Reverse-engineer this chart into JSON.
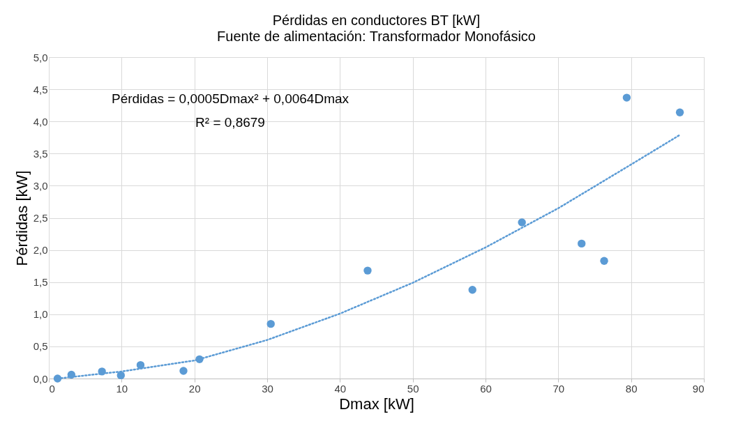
{
  "chart_data": {
    "type": "scatter",
    "title": "Pérdidas en conductores BT [kW]",
    "subtitle": "Fuente de alimentación:  Transformador Monofásico",
    "xlabel": "Dmax [kW]",
    "ylabel": "Pérdidas [kW]",
    "xlim": [
      0,
      90
    ],
    "xticks": [
      0,
      10,
      20,
      30,
      40,
      50,
      60,
      70,
      80,
      90
    ],
    "ylim": [
      0,
      5
    ],
    "yticks": [
      {
        "value": 0,
        "label": "0,0"
      },
      {
        "value": 0.5,
        "label": "0,5"
      },
      {
        "value": 1,
        "label": "1,0"
      },
      {
        "value": 1.5,
        "label": "1,5"
      },
      {
        "value": 2,
        "label": "2,0"
      },
      {
        "value": 2.5,
        "label": "2,5"
      },
      {
        "value": 3,
        "label": "3,0"
      },
      {
        "value": 3.5,
        "label": "3,5"
      },
      {
        "value": 4,
        "label": "4,0"
      },
      {
        "value": 4.5,
        "label": "4,5"
      },
      {
        "value": 5,
        "label": "5,0"
      }
    ],
    "grid": true,
    "marker": "circle",
    "series": [
      {
        "color": "#5b9bd5",
        "x": [
          1.2,
          3.1,
          7.3,
          9.9,
          12.6,
          18.5,
          20.7,
          30.5,
          43.8,
          58.2,
          65.0,
          73.2,
          76.3,
          79.4,
          86.7
        ],
        "values": [
          0.0,
          0.06,
          0.11,
          0.05,
          0.21,
          0.12,
          0.3,
          0.85,
          1.68,
          1.38,
          2.43,
          2.1,
          1.83,
          4.37,
          4.14
        ]
      },
      {
        "type": "line",
        "line_style": "dotted",
        "marker": "none",
        "color": "#5b9bd5",
        "x": [
          1.2,
          10,
          20,
          30,
          40,
          50,
          60,
          70,
          80,
          86.7
        ],
        "values": [
          0.0,
          0.11,
          0.28,
          0.6,
          1.01,
          1.49,
          2.04,
          2.65,
          3.33,
          3.79
        ]
      }
    ],
    "annotations": [
      "Pérdidas = 0,0005Dmax² + 0,0064Dmax",
      "R² = 0,8679"
    ]
  }
}
